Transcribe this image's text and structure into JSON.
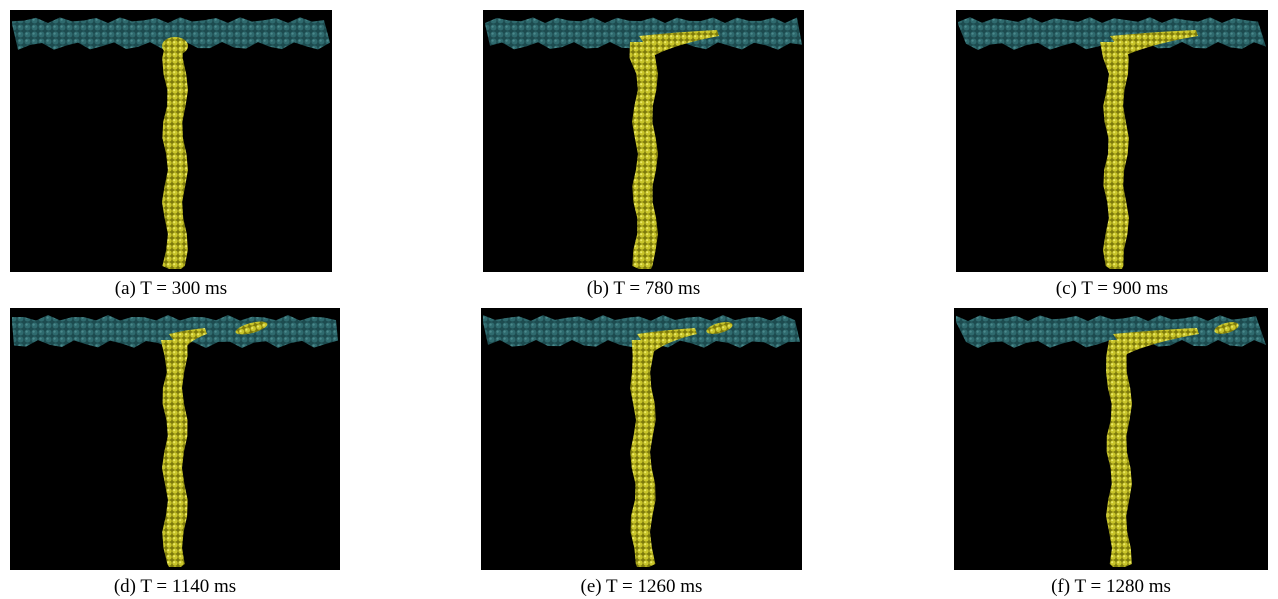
{
  "figure": {
    "panels": [
      {
        "caption": "(a) T = 300 ms"
      },
      {
        "caption": "(b) T = 780 ms"
      },
      {
        "caption": "(c) T = 900 ms"
      },
      {
        "caption": "(d) T = 1140 ms"
      },
      {
        "caption": "(e) T = 1260 ms"
      },
      {
        "caption": "(f) T = 1280 ms"
      }
    ]
  }
}
